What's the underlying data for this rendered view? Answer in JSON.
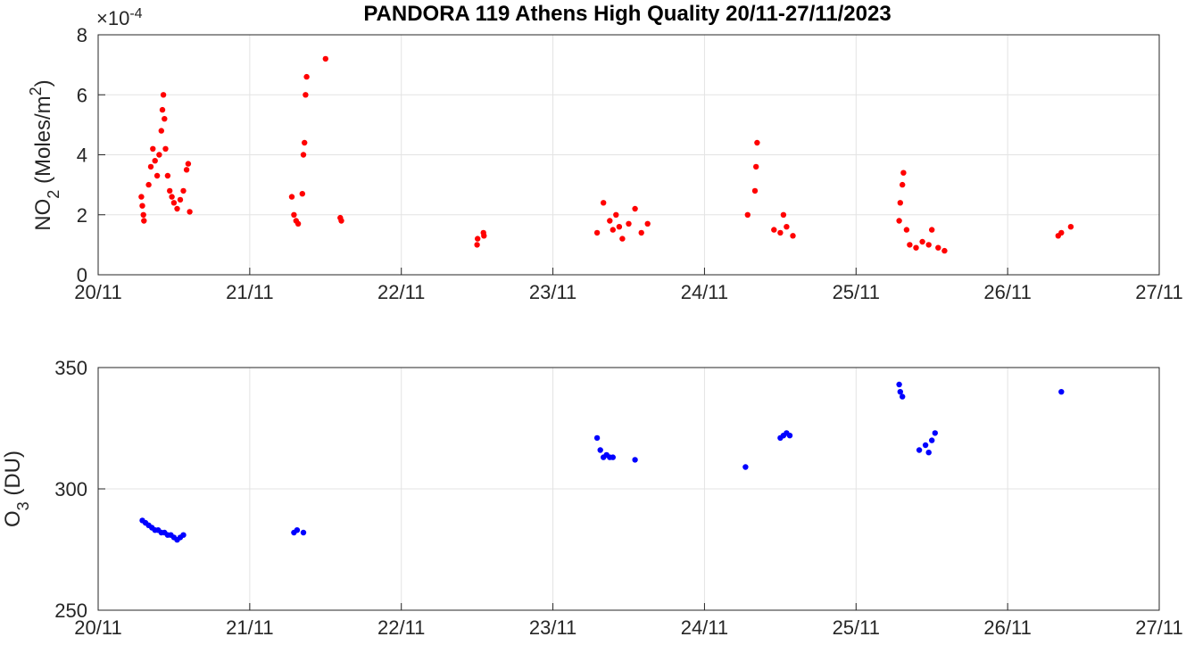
{
  "title": "PANDORA 119 Athens High Quality 20/11-27/11/2023",
  "colors": {
    "no2": "#ff0000",
    "o3": "#0000ff",
    "grid": "#e3e3e3",
    "axis": "#262626"
  },
  "chart_data": [
    {
      "type": "scatter",
      "ylabel_main": "NO",
      "ylabel_sub": "2",
      "ylabel_tail": " (Moles/m",
      "ylabel_sup": "2",
      "ylabel_close": ")",
      "exponent_prefix": "×10",
      "exponent_power": "-4",
      "xlim": [
        "2023-11-20",
        "2023-11-27"
      ],
      "xticks": [
        "20/11",
        "21/11",
        "22/11",
        "23/11",
        "24/11",
        "25/11",
        "26/11",
        "27/11"
      ],
      "ylim": [
        0,
        0.0008
      ],
      "yticks": [
        "0",
        "2",
        "4",
        "6",
        "8"
      ],
      "grid": true,
      "series": [
        {
          "color": "#ff0000",
          "points": [
            [
              "2023-11-20 06:50",
              0.00026
            ],
            [
              "2023-11-20 07:00",
              0.00023
            ],
            [
              "2023-11-20 07:10",
              0.0002
            ],
            [
              "2023-11-20 07:15",
              0.00018
            ],
            [
              "2023-11-20 08:00",
              0.0003
            ],
            [
              "2023-11-20 08:20",
              0.00036
            ],
            [
              "2023-11-20 08:40",
              0.00042
            ],
            [
              "2023-11-20 09:00",
              0.00038
            ],
            [
              "2023-11-20 09:20",
              0.00033
            ],
            [
              "2023-11-20 09:40",
              0.0004
            ],
            [
              "2023-11-20 10:00",
              0.00048
            ],
            [
              "2023-11-20 10:10",
              0.00055
            ],
            [
              "2023-11-20 10:20",
              0.0006
            ],
            [
              "2023-11-20 10:30",
              0.00052
            ],
            [
              "2023-11-20 10:40",
              0.00042
            ],
            [
              "2023-11-20 11:00",
              0.00033
            ],
            [
              "2023-11-20 11:20",
              0.00028
            ],
            [
              "2023-11-20 11:40",
              0.00026
            ],
            [
              "2023-11-20 12:00",
              0.00024
            ],
            [
              "2023-11-20 12:30",
              0.00022
            ],
            [
              "2023-11-20 13:00",
              0.00025
            ],
            [
              "2023-11-20 13:30",
              0.00028
            ],
            [
              "2023-11-20 14:00",
              0.00035
            ],
            [
              "2023-11-20 14:15",
              0.00037
            ],
            [
              "2023-11-20 14:30",
              0.00021
            ],
            [
              "2023-11-21 06:40",
              0.00026
            ],
            [
              "2023-11-21 07:00",
              0.0002
            ],
            [
              "2023-11-21 07:20",
              0.00018
            ],
            [
              "2023-11-21 07:40",
              0.00017
            ],
            [
              "2023-11-21 08:20",
              0.00027
            ],
            [
              "2023-11-21 08:30",
              0.0004
            ],
            [
              "2023-11-21 08:40",
              0.00044
            ],
            [
              "2023-11-21 08:50",
              0.0006
            ],
            [
              "2023-11-21 09:00",
              0.00066
            ],
            [
              "2023-11-21 12:00",
              0.00072
            ],
            [
              "2023-11-21 14:20",
              0.00019
            ],
            [
              "2023-11-21 14:30",
              0.00018
            ],
            [
              "2023-11-22 12:00",
              0.0001
            ],
            [
              "2023-11-22 12:05",
              0.00012
            ],
            [
              "2023-11-22 13:00",
              0.00014
            ],
            [
              "2023-11-22 13:05",
              0.00013
            ],
            [
              "2023-11-23 07:00",
              0.00014
            ],
            [
              "2023-11-23 08:00",
              0.00024
            ],
            [
              "2023-11-23 09:00",
              0.00018
            ],
            [
              "2023-11-23 09:30",
              0.00015
            ],
            [
              "2023-11-23 10:00",
              0.0002
            ],
            [
              "2023-11-23 10:30",
              0.00016
            ],
            [
              "2023-11-23 11:00",
              0.00012
            ],
            [
              "2023-11-23 12:00",
              0.00017
            ],
            [
              "2023-11-23 13:00",
              0.00022
            ],
            [
              "2023-11-23 14:00",
              0.00014
            ],
            [
              "2023-11-23 15:00",
              0.00017
            ],
            [
              "2023-11-24 06:50",
              0.0002
            ],
            [
              "2023-11-24 08:00",
              0.00028
            ],
            [
              "2023-11-24 08:10",
              0.00036
            ],
            [
              "2023-11-24 08:20",
              0.00044
            ],
            [
              "2023-11-24 11:00",
              0.00015
            ],
            [
              "2023-11-24 12:00",
              0.00014
            ],
            [
              "2023-11-24 12:30",
              0.0002
            ],
            [
              "2023-11-24 13:00",
              0.00016
            ],
            [
              "2023-11-24 14:00",
              0.00013
            ],
            [
              "2023-11-25 06:50",
              0.00018
            ],
            [
              "2023-11-25 07:00",
              0.00024
            ],
            [
              "2023-11-25 07:20",
              0.0003
            ],
            [
              "2023-11-25 07:30",
              0.00034
            ],
            [
              "2023-11-25 08:00",
              0.00015
            ],
            [
              "2023-11-25 08:30",
              0.0001
            ],
            [
              "2023-11-25 09:30",
              9e-05
            ],
            [
              "2023-11-25 10:30",
              0.00011
            ],
            [
              "2023-11-25 11:30",
              0.0001
            ],
            [
              "2023-11-25 12:00",
              0.00015
            ],
            [
              "2023-11-25 13:00",
              9e-05
            ],
            [
              "2023-11-25 14:00",
              8e-05
            ],
            [
              "2023-11-26 08:00",
              0.00013
            ],
            [
              "2023-11-26 08:30",
              0.00014
            ],
            [
              "2023-11-26 10:00",
              0.00016
            ]
          ]
        }
      ]
    },
    {
      "type": "scatter",
      "ylabel_main": "O",
      "ylabel_sub": "3",
      "ylabel_tail": " (DU)",
      "xlim": [
        "2023-11-20",
        "2023-11-27"
      ],
      "xticks": [
        "20/11",
        "21/11",
        "22/11",
        "23/11",
        "24/11",
        "25/11",
        "26/11",
        "27/11"
      ],
      "ylim": [
        250,
        350
      ],
      "yticks": [
        "250",
        "300",
        "350"
      ],
      "grid": true,
      "series": [
        {
          "color": "#0000ff",
          "points": [
            [
              "2023-11-20 07:00",
              287
            ],
            [
              "2023-11-20 07:30",
              286
            ],
            [
              "2023-11-20 08:00",
              285
            ],
            [
              "2023-11-20 08:30",
              284
            ],
            [
              "2023-11-20 09:00",
              283
            ],
            [
              "2023-11-20 09:30",
              283
            ],
            [
              "2023-11-20 10:00",
              282
            ],
            [
              "2023-11-20 10:30",
              282
            ],
            [
              "2023-11-20 11:00",
              281
            ],
            [
              "2023-11-20 11:30",
              281
            ],
            [
              "2023-11-20 12:00",
              280
            ],
            [
              "2023-11-20 12:30",
              279
            ],
            [
              "2023-11-20 13:00",
              280
            ],
            [
              "2023-11-20 13:30",
              281
            ],
            [
              "2023-11-21 07:00",
              282
            ],
            [
              "2023-11-21 07:30",
              283
            ],
            [
              "2023-11-21 08:30",
              282
            ],
            [
              "2023-11-23 07:00",
              321
            ],
            [
              "2023-11-23 07:30",
              316
            ],
            [
              "2023-11-23 08:00",
              313
            ],
            [
              "2023-11-23 08:30",
              314
            ],
            [
              "2023-11-23 09:00",
              313
            ],
            [
              "2023-11-23 09:30",
              313
            ],
            [
              "2023-11-23 13:00",
              312
            ],
            [
              "2023-11-24 06:30",
              309
            ],
            [
              "2023-11-24 12:00",
              321
            ],
            [
              "2023-11-24 12:30",
              322
            ],
            [
              "2023-11-24 13:00",
              323
            ],
            [
              "2023-11-24 13:30",
              322
            ],
            [
              "2023-11-25 06:50",
              343
            ],
            [
              "2023-11-25 07:00",
              340
            ],
            [
              "2023-11-25 07:20",
              338
            ],
            [
              "2023-11-25 10:00",
              316
            ],
            [
              "2023-11-25 11:00",
              318
            ],
            [
              "2023-11-25 11:30",
              315
            ],
            [
              "2023-11-25 12:00",
              320
            ],
            [
              "2023-11-25 12:30",
              323
            ],
            [
              "2023-11-26 08:30",
              340
            ]
          ]
        }
      ]
    }
  ]
}
